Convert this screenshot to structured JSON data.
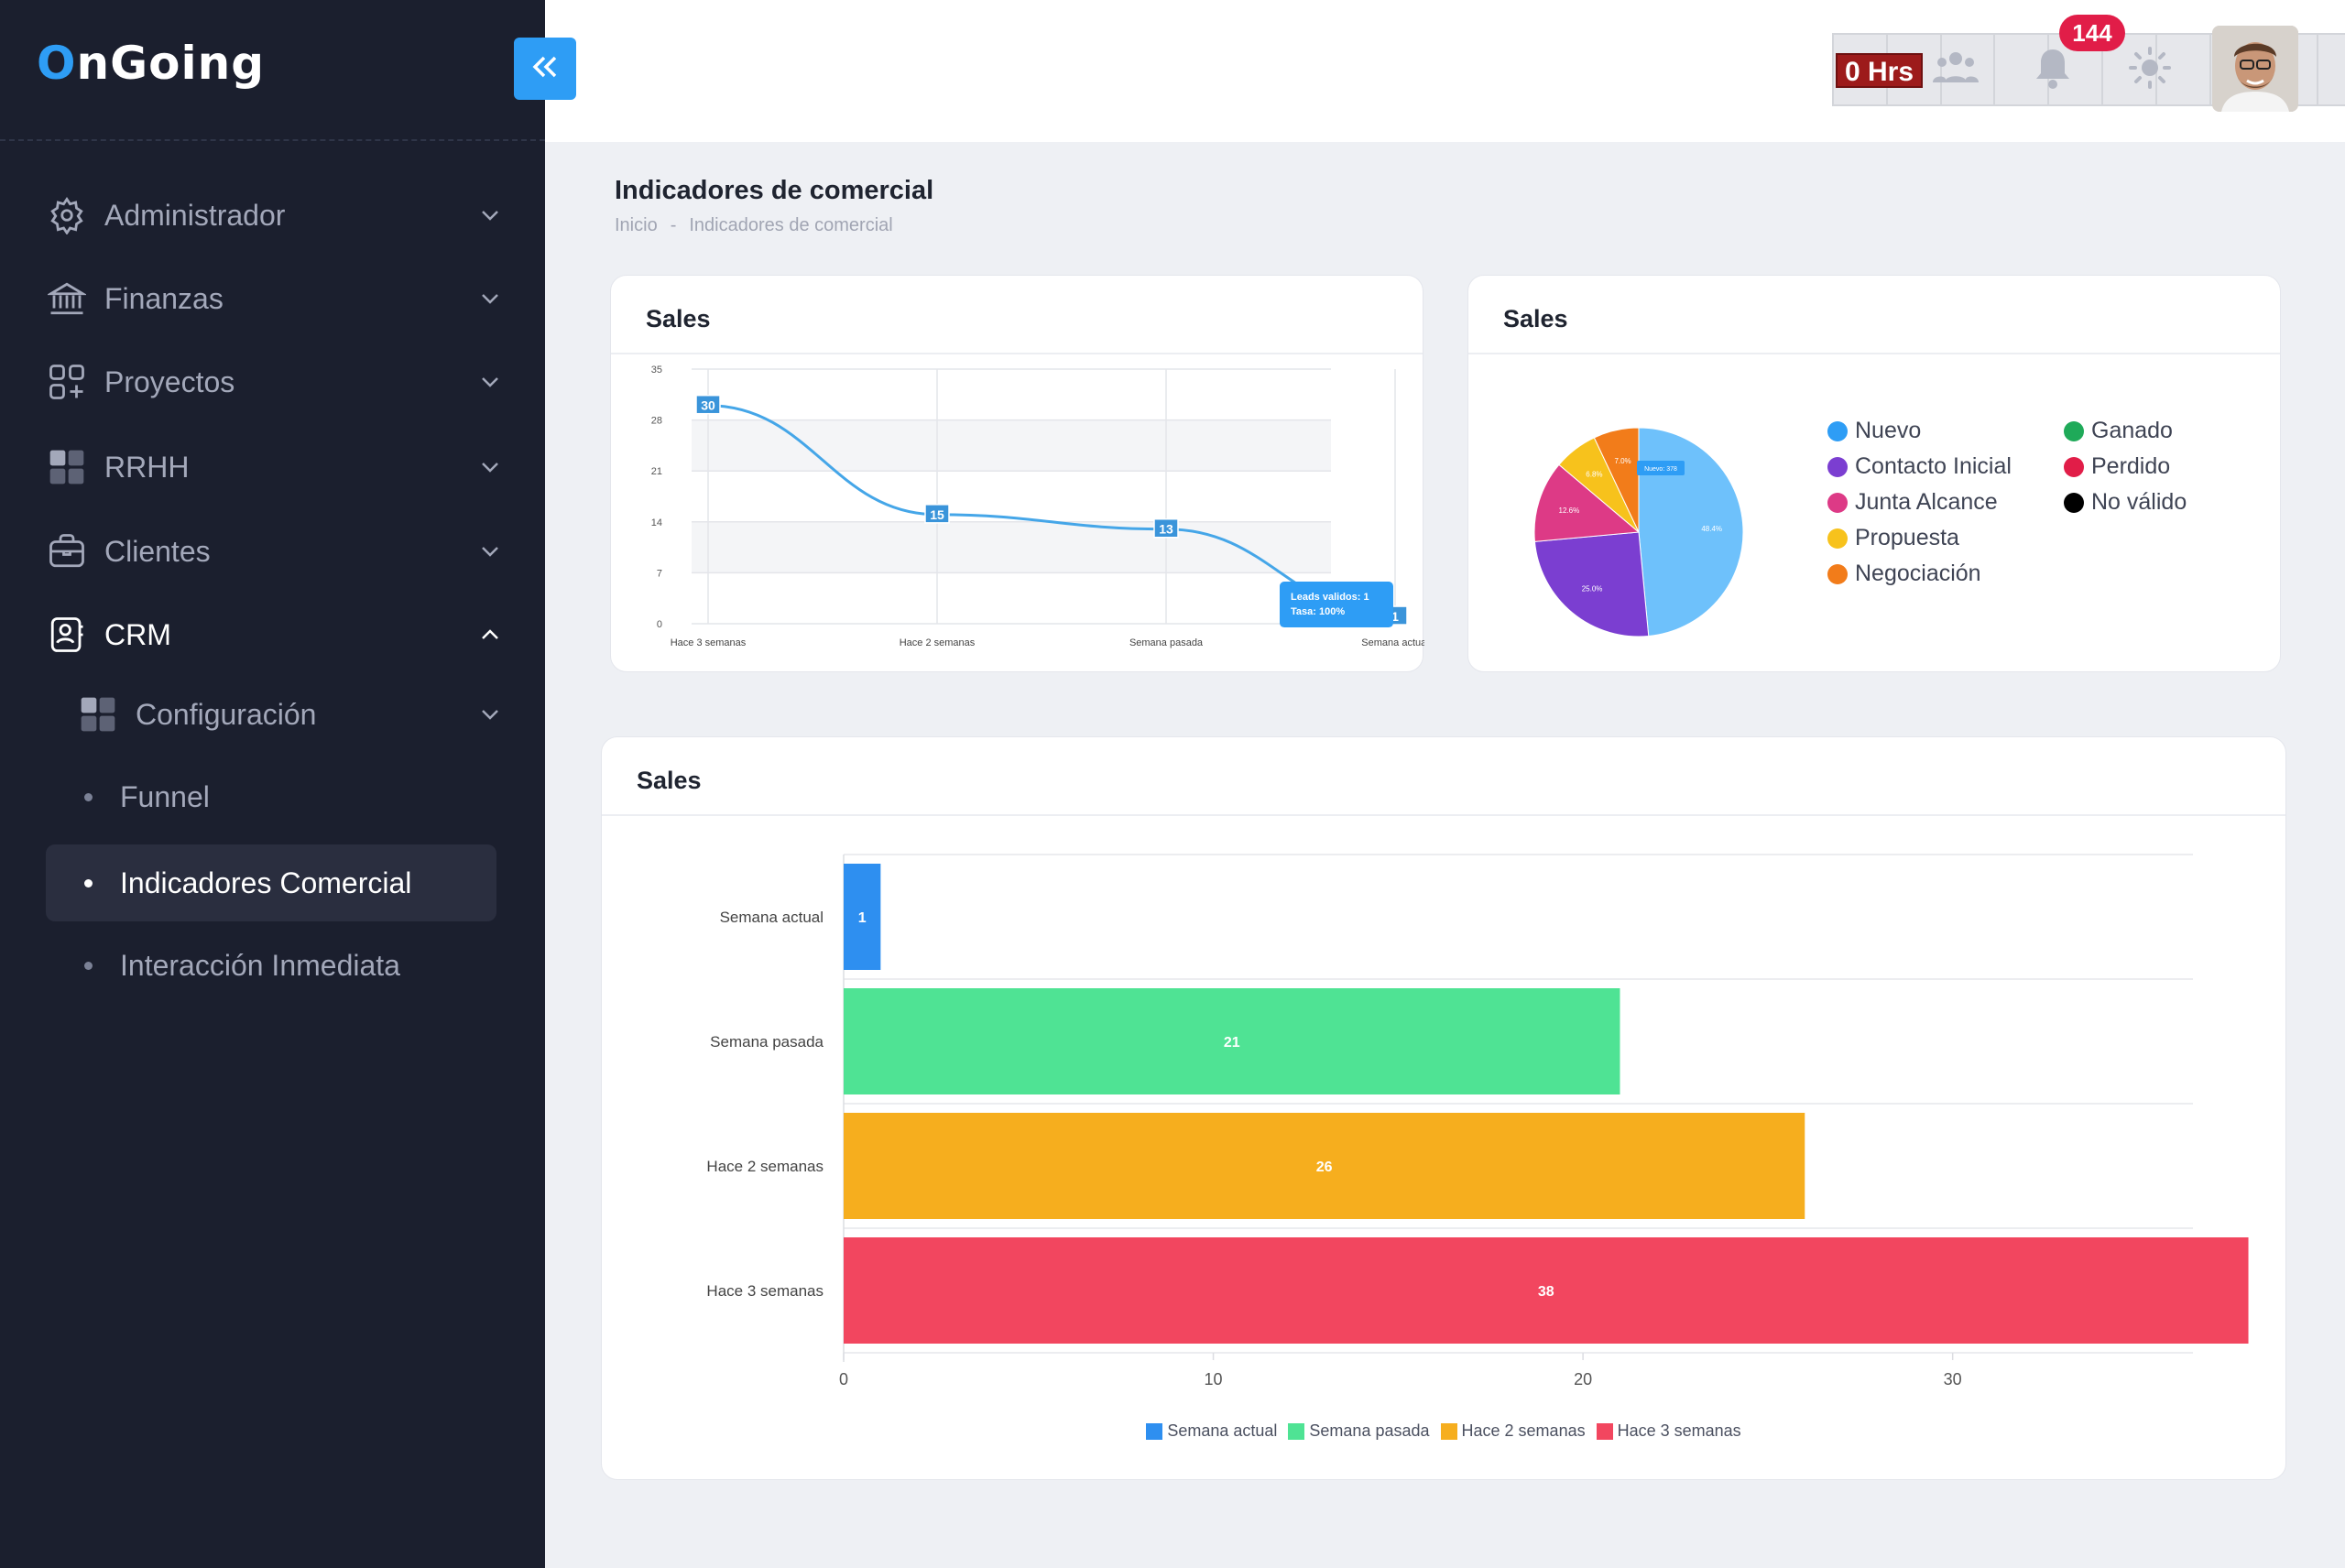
{
  "app": {
    "logo_first": "O",
    "logo_rest": "nGoing"
  },
  "sidebar": {
    "items": [
      {
        "label": "Administrador",
        "icon": "gear-icon"
      },
      {
        "label": "Finanzas",
        "icon": "bank-icon"
      },
      {
        "label": "Proyectos",
        "icon": "apps-add-icon"
      },
      {
        "label": "RRHH",
        "icon": "grid-icon"
      },
      {
        "label": "Clientes",
        "icon": "briefcase-icon"
      },
      {
        "label": "CRM",
        "icon": "contact-card-icon"
      }
    ],
    "crm_children": [
      {
        "label": "Configuración",
        "icon": "grid-icon"
      },
      {
        "label": "Funnel"
      },
      {
        "label": "Indicadores Comercial",
        "active": true
      },
      {
        "label": "Interacción Inmediata"
      }
    ]
  },
  "header": {
    "timer": "0 Hrs",
    "notifications": "144"
  },
  "page": {
    "title": "Indicadores de comercial",
    "breadcrumb": [
      "Inicio",
      "-",
      "Indicadores de comercial"
    ]
  },
  "colors": {
    "accent": "#2e9df5",
    "sidebar_bg": "#1b1f2e",
    "line": "#45a6e8",
    "nuevo": "#6ec1fb",
    "contacto_inicial": "#7b3ed1",
    "junta_alcance": "#dd3a86",
    "propuesta": "#f7c21c",
    "negociacion": "#f27c1a",
    "ganado": "#1faa59",
    "perdido": "#e11d48",
    "no_valido": "#000000"
  },
  "line_card": {
    "title": "Sales",
    "tooltip": {
      "line1": "Leads validos: 1",
      "line2": "Tasa: 100%"
    }
  },
  "pie_card": {
    "title": "Sales",
    "legend": [
      {
        "label": "Nuevo",
        "color": "#2e9df5"
      },
      {
        "label": "Contacto Inicial",
        "color": "#7b3ed1"
      },
      {
        "label": "Junta Alcance",
        "color": "#dd3a86"
      },
      {
        "label": "Propuesta",
        "color": "#f7c21c"
      },
      {
        "label": "Negociación",
        "color": "#f27c1a"
      },
      {
        "label": "Ganado",
        "color": "#1faa59"
      },
      {
        "label": "Perdido",
        "color": "#e11d48"
      },
      {
        "label": "No válido",
        "color": "#000000"
      }
    ],
    "tooltip": "Nuevo: 378"
  },
  "bar_card": {
    "title": "Sales"
  },
  "chart_data": [
    {
      "type": "line",
      "categories": [
        "Hace 3 semanas",
        "Hace 2 semanas",
        "Semana pasada",
        "Semana actual"
      ],
      "values": [
        30,
        15,
        13,
        1
      ],
      "ylim": [
        0,
        35
      ],
      "yticks": [
        0,
        7,
        14,
        21,
        28,
        35
      ],
      "grid": true
    },
    {
      "type": "pie",
      "labels": [
        "Nuevo",
        "Contacto Inicial",
        "Junta Alcance",
        "Propuesta",
        "Negociación"
      ],
      "values": [
        48.4,
        25.0,
        12.6,
        6.8,
        7.0
      ],
      "slice_labels": [
        "48.4%",
        "25.0%",
        "12.6%",
        "6.8%",
        "7.0%"
      ],
      "legend": "right"
    },
    {
      "type": "bar",
      "orientation": "horizontal",
      "categories": [
        "Semana actual",
        "Semana pasada",
        "Hace 2 semanas",
        "Hace 3 semanas"
      ],
      "values": [
        1,
        21,
        26,
        38
      ],
      "colors": [
        "#2e8ff0",
        "#4fe394",
        "#f6ae1e",
        "#f2465f"
      ],
      "xlim": [
        0,
        36.5
      ],
      "xticks": [
        0,
        10,
        20,
        30
      ],
      "legend": "bottom",
      "legend_labels": [
        "Semana actual",
        "Semana pasada",
        "Hace 2 semanas",
        "Hace 3 semanas"
      ]
    }
  ]
}
